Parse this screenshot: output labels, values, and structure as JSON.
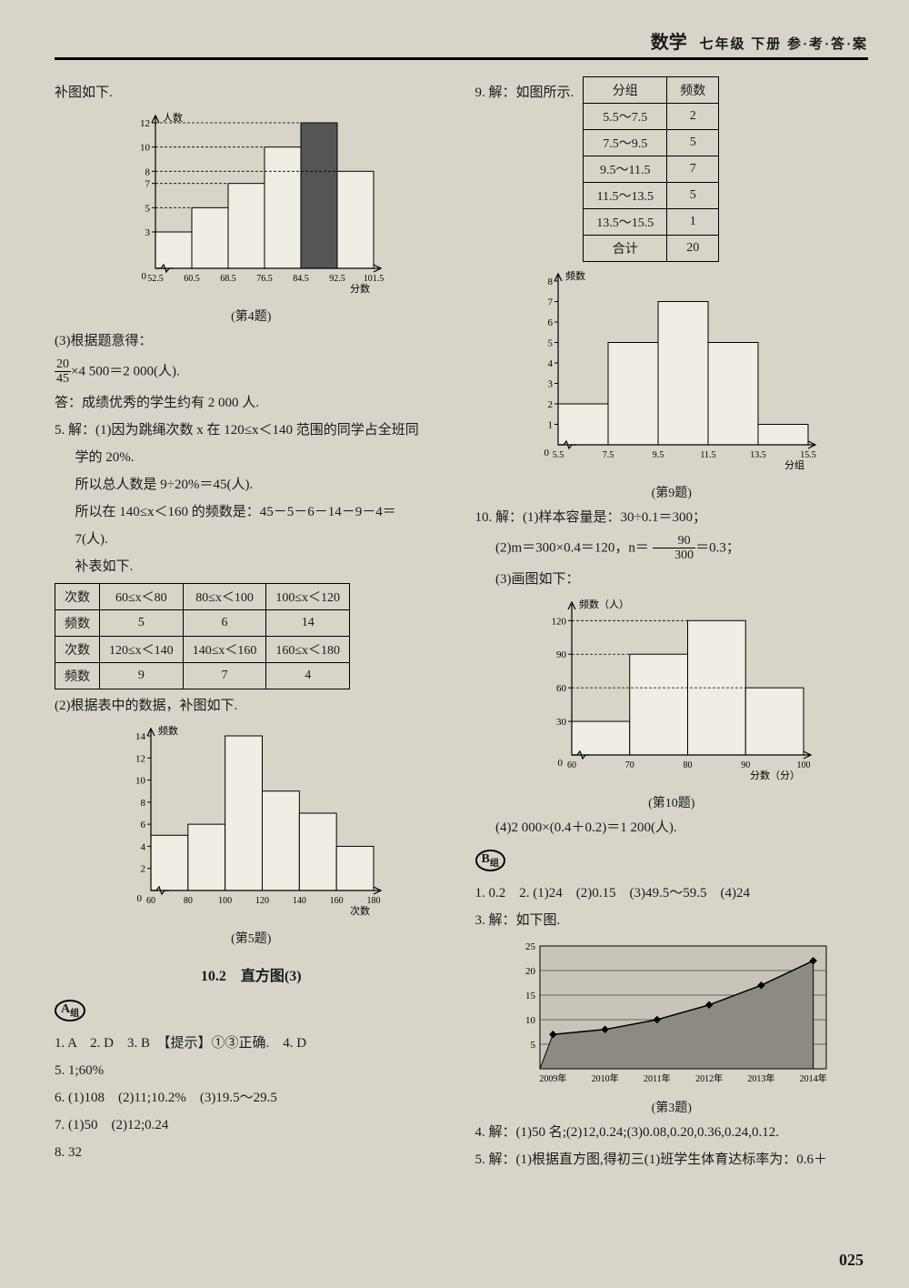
{
  "header": {
    "subject": "数学",
    "grade": "七年级 下册 参·考·答·案"
  },
  "left": {
    "intro": "补图如下.",
    "chart4": {
      "type": "bar",
      "ylabel": "人数",
      "xlabel": "分数",
      "caption": "(第4题)",
      "categories": [
        "52.5",
        "60.5",
        "68.5",
        "76.5",
        "84.5",
        "92.5",
        "101.5"
      ],
      "values": [
        3,
        5,
        7,
        10,
        12,
        8
      ],
      "yticks": [
        0,
        3,
        5,
        7,
        8,
        10,
        12
      ],
      "highlight_index": 4,
      "bar_color": "#f0ede4",
      "highlight_color": "#555555",
      "axis_color": "#000000"
    },
    "q3_lines": [
      "(3)根据题意得：",
      "×4 500＝2 000(人).",
      "答：成绩优秀的学生约有 2 000 人."
    ],
    "q3_frac": {
      "num": "20",
      "den": "45"
    },
    "q5_lines": [
      "5. 解：(1)因为跳绳次数 x 在 120≤x＜140 范围的同学占全班同",
      "学的 20%.",
      "所以总人数是 9÷20%＝45(人).",
      "所以在 140≤x＜160 的频数是：45－5－6－14－9－4＝",
      "7(人).",
      "补表如下."
    ],
    "table5": {
      "row1h": "次数",
      "row1": [
        "60≤x＜80",
        "80≤x＜100",
        "100≤x＜120"
      ],
      "row2h": "频数",
      "row2": [
        "5",
        "6",
        "14"
      ],
      "row3h": "次数",
      "row3": [
        "120≤x＜140",
        "140≤x＜160",
        "160≤x＜180"
      ],
      "row4h": "频数",
      "row4": [
        "9",
        "7",
        "4"
      ]
    },
    "q5_sub2": "(2)根据表中的数据，补图如下.",
    "chart5": {
      "type": "bar",
      "ylabel": "频数",
      "xlabel": "次数",
      "caption": "(第5题)",
      "categories": [
        "60",
        "80",
        "100",
        "120",
        "140",
        "160",
        "180"
      ],
      "values": [
        5,
        6,
        14,
        9,
        7,
        4
      ],
      "yticks": [
        0,
        2,
        4,
        6,
        8,
        10,
        12,
        14
      ],
      "ymax": 14,
      "bar_color": "#f0ede4",
      "axis_color": "#000000"
    },
    "section_title": "10.2　直方图(3)",
    "badgeA": "A",
    "a_lines": [
      "1. A　2. D　3. B　【提示】①③正确.　4. D",
      "5. 1;60%",
      "6. (1)108　(2)11;10.2%　(3)19.5～29.5",
      "7. (1)50　(2)12;0.24",
      "8. 32"
    ]
  },
  "right": {
    "q9_intro": "9. 解：如图所示.",
    "table9": {
      "head": [
        "分组",
        "频数"
      ],
      "rows": [
        [
          "5.5～7.5",
          "2"
        ],
        [
          "7.5～9.5",
          "5"
        ],
        [
          "9.5～11.5",
          "7"
        ],
        [
          "11.5～13.5",
          "5"
        ],
        [
          "13.5～15.5",
          "1"
        ],
        [
          "合计",
          "20"
        ]
      ]
    },
    "chart9": {
      "type": "bar",
      "ylabel": "频数",
      "xlabel": "分组",
      "caption": "(第9题)",
      "categories": [
        "5.5",
        "7.5",
        "9.5",
        "11.5",
        "13.5",
        "15.5"
      ],
      "values": [
        2,
        5,
        7,
        5,
        1
      ],
      "yticks": [
        0,
        1,
        2,
        3,
        4,
        5,
        6,
        7,
        8
      ],
      "ymax": 8,
      "bar_color": "#f0ede4",
      "axis_color": "#000000"
    },
    "q10_lines": [
      "10. 解：(1)样本容量是：30÷0.1＝300；",
      "(2)m＝300×0.4＝120，n＝",
      "＝0.3；",
      "(3)画图如下："
    ],
    "q10_frac": {
      "num": "90",
      "den": "300"
    },
    "chart10": {
      "type": "bar",
      "ylabel": "频数（人）",
      "xlabel": "分数（分）",
      "caption": "(第10题)",
      "categories": [
        "60",
        "70",
        "80",
        "90",
        "100"
      ],
      "values": [
        30,
        90,
        120,
        60
      ],
      "yticks": [
        30,
        60,
        90,
        120
      ],
      "ymax": 130,
      "bar_color": "#f0ede4",
      "axis_color": "#000000"
    },
    "q10_sub4": "(4)2 000×(0.4＋0.2)＝1 200(人).",
    "badgeB": "B",
    "b_lines": [
      "1. 0.2　2. (1)24　(2)0.15　(3)49.5～59.5　(4)24",
      "3. 解：如下图."
    ],
    "chart3": {
      "type": "line",
      "caption": "(第3题)",
      "categories": [
        "2009年",
        "2010年",
        "2011年",
        "2012年",
        "2013年",
        "2014年"
      ],
      "values": [
        7,
        8,
        10,
        13,
        17,
        22
      ],
      "yticks": [
        5,
        10,
        15,
        20,
        25
      ],
      "ymax": 25,
      "fill_color": "#8d8a82",
      "axis_color": "#000000"
    },
    "b_tail": [
      "4. 解：(1)50 名;(2)12,0.24;(3)0.08,0.20,0.36,0.24,0.12.",
      "5. 解：(1)根据直方图,得初三(1)班学生体育达标率为：0.6＋"
    ]
  },
  "page_number": "025"
}
